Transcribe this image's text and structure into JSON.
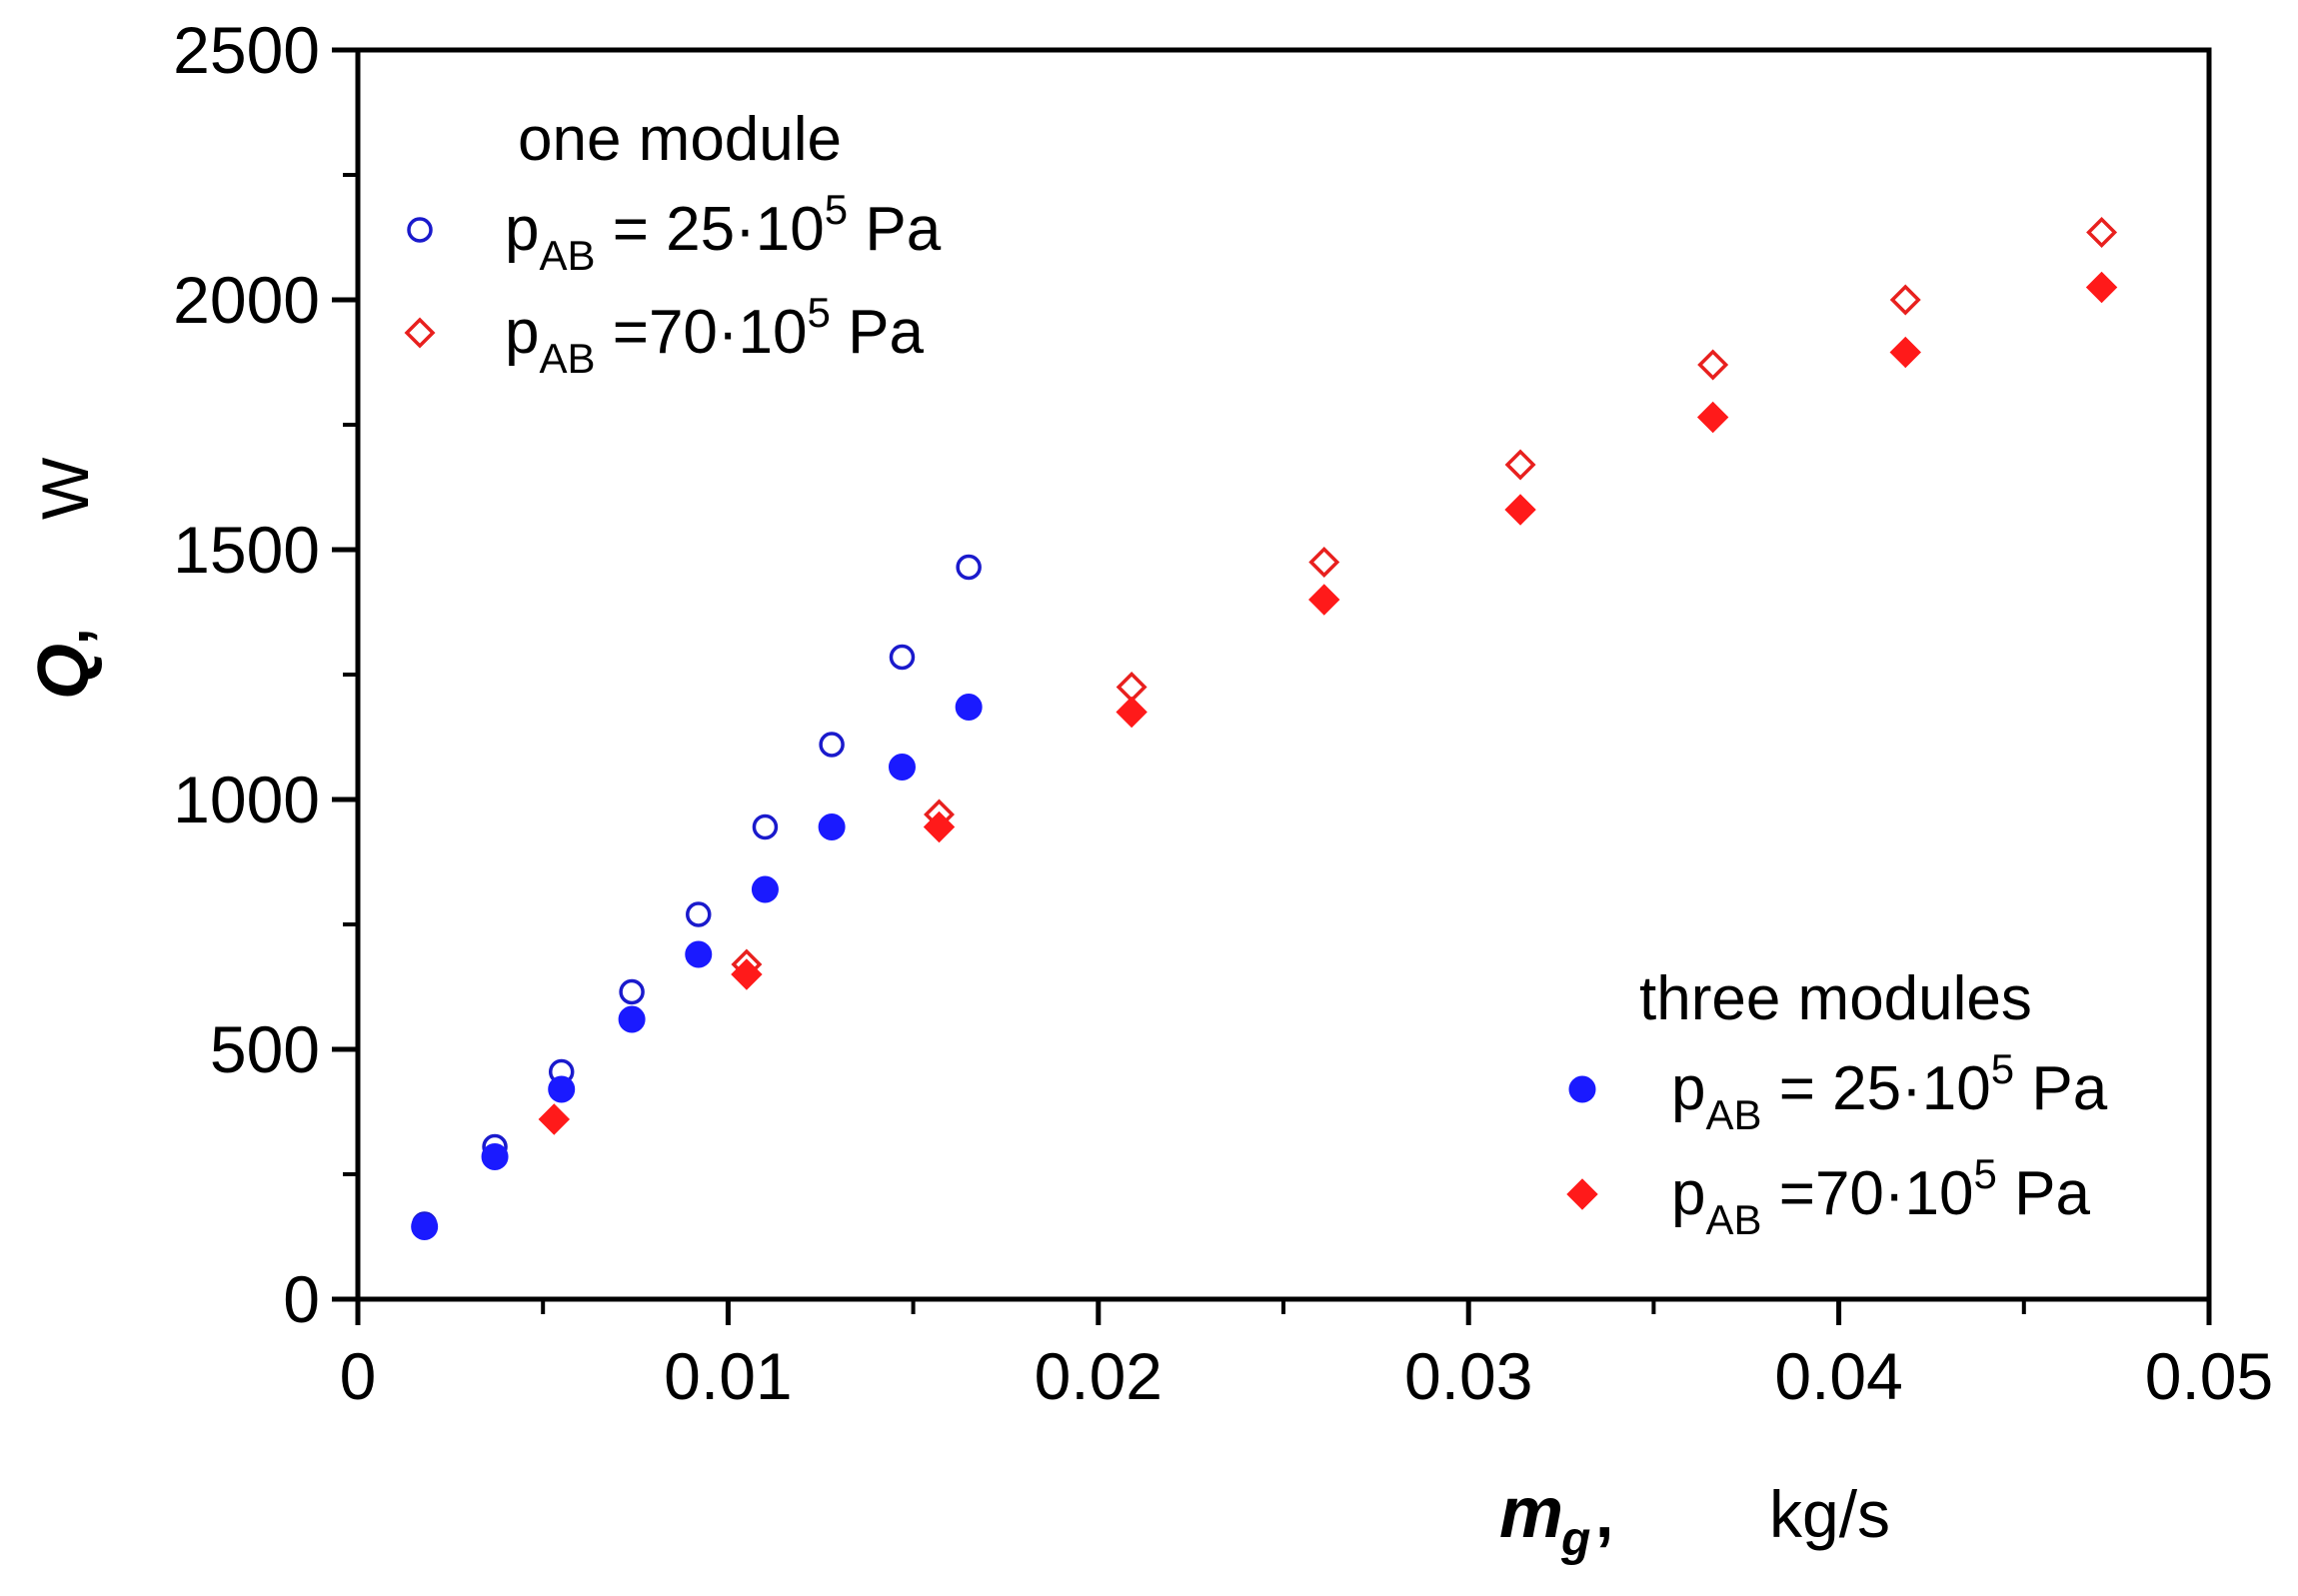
{
  "chart_data": {
    "type": "scatter",
    "xlim": [
      0,
      0.05
    ],
    "ylim": [
      0,
      2500
    ],
    "x_ticks": [
      0,
      0.01,
      0.02,
      0.03,
      0.04,
      0.05
    ],
    "x_tick_labels": [
      "0",
      "0.01",
      "0.02",
      "0.03",
      "0.04",
      "0.05"
    ],
    "y_ticks": [
      0,
      500,
      1000,
      1500,
      2000,
      2500
    ],
    "y_tick_labels": [
      "0",
      "500",
      "1000",
      "1500",
      "2000",
      "2500"
    ],
    "xlabel": {
      "symbol": "m",
      "subscript": "g",
      "comma": ",",
      "unit": "kg/s"
    },
    "ylabel": {
      "symbol": "Q",
      "comma": ",",
      "unit": "W"
    },
    "grid": false,
    "legends": [
      {
        "title": "one module",
        "placement": "top-left",
        "entries": [
          {
            "series": 0,
            "prefix": "p",
            "sub": "AB",
            "text": " = 25·10",
            "sup": "5",
            "suffix": " Pa"
          },
          {
            "series": 1,
            "prefix": "p",
            "sub": "AB",
            "text": " =70·10",
            "sup": "5",
            "suffix": " Pa"
          }
        ]
      },
      {
        "title": "three modules",
        "placement": "bottom-right",
        "entries": [
          {
            "series": 2,
            "prefix": "p",
            "sub": "AB",
            "text": " = 25·10",
            "sup": "5",
            "suffix": " Pa"
          },
          {
            "series": 3,
            "prefix": "p",
            "sub": "AB",
            "text": " =70·10",
            "sup": "5",
            "suffix": " Pa"
          }
        ]
      }
    ],
    "series": [
      {
        "marker": "circle-open",
        "color": "#1a1acc",
        "points": [
          [
            0.0018,
            150
          ],
          [
            0.0037,
            305
          ],
          [
            0.0055,
            455
          ],
          [
            0.0074,
            615
          ],
          [
            0.0092,
            770
          ],
          [
            0.011,
            945
          ],
          [
            0.0128,
            1110
          ],
          [
            0.0147,
            1285
          ],
          [
            0.0165,
            1465
          ]
        ]
      },
      {
        "marker": "diamond-open",
        "color": "#e8201e",
        "points": [
          [
            0.0105,
            670
          ],
          [
            0.0157,
            970
          ],
          [
            0.0209,
            1225
          ],
          [
            0.0261,
            1475
          ],
          [
            0.0314,
            1670
          ],
          [
            0.0366,
            1870
          ],
          [
            0.0418,
            2000
          ],
          [
            0.0471,
            2135
          ]
        ]
      },
      {
        "marker": "circle-filled",
        "color": "#1a1aff",
        "points": [
          [
            0.0018,
            145
          ],
          [
            0.0037,
            285
          ],
          [
            0.0055,
            420
          ],
          [
            0.0074,
            560
          ],
          [
            0.0092,
            690
          ],
          [
            0.011,
            820
          ],
          [
            0.0128,
            945
          ],
          [
            0.0147,
            1065
          ],
          [
            0.0165,
            1185
          ]
        ]
      },
      {
        "marker": "diamond-filled",
        "color": "#ff1a1a",
        "points": [
          [
            0.0053,
            360
          ],
          [
            0.0105,
            650
          ],
          [
            0.0157,
            945
          ],
          [
            0.0209,
            1175
          ],
          [
            0.0261,
            1400
          ],
          [
            0.0314,
            1580
          ],
          [
            0.0366,
            1765
          ],
          [
            0.0418,
            1895
          ],
          [
            0.0471,
            2025
          ]
        ]
      }
    ]
  }
}
